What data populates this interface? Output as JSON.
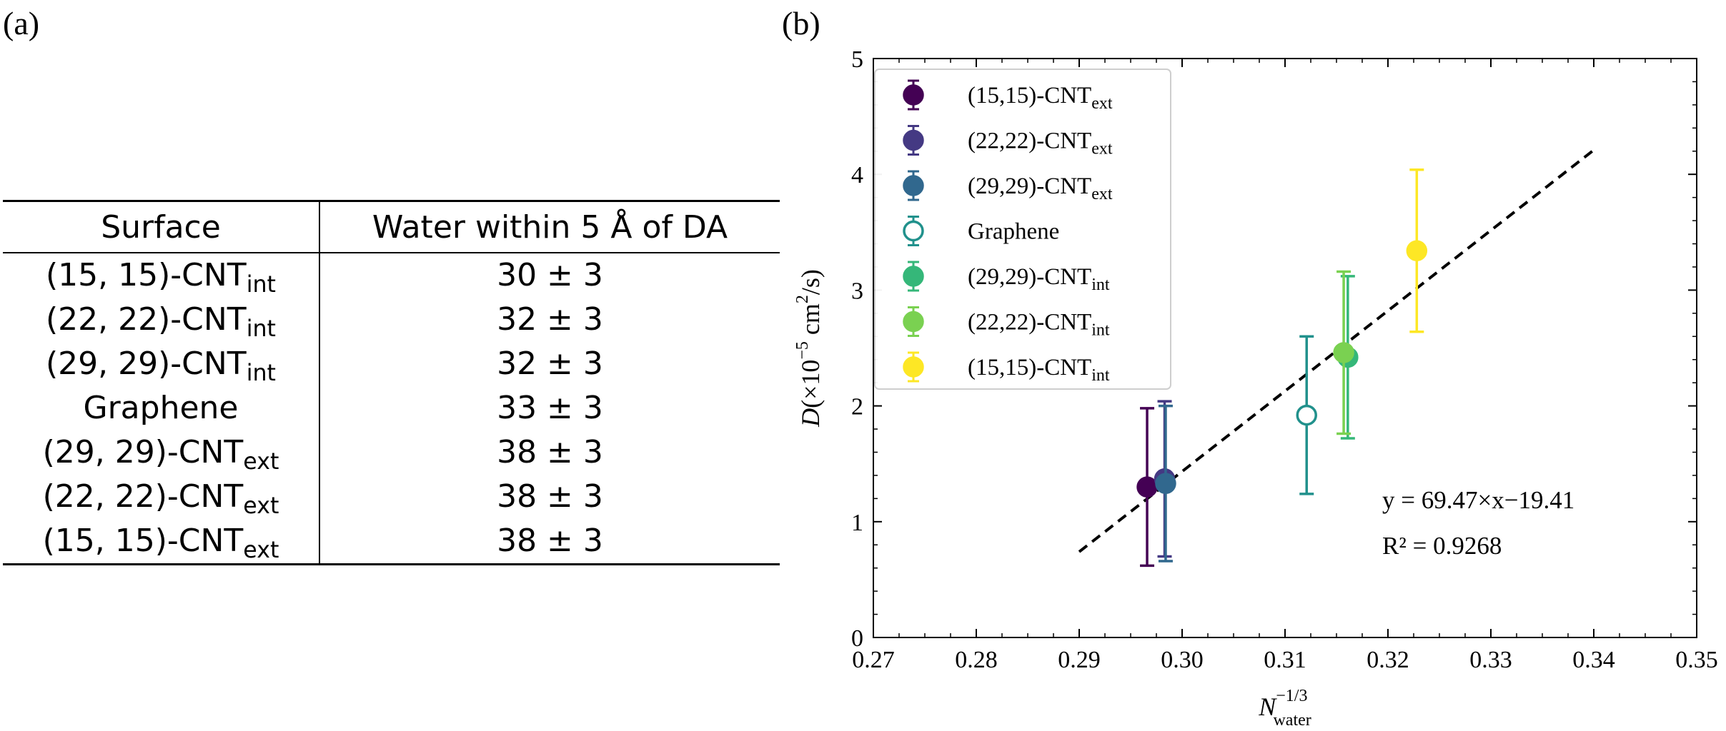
{
  "panels": {
    "a": "(a)",
    "b": "(b)"
  },
  "table": {
    "headers": [
      "Surface",
      "Water within 5 Å of DA"
    ],
    "rows": [
      {
        "surface": "(15, 15)-CNT",
        "sub": "int",
        "value": "30 ± 3"
      },
      {
        "surface": "(22, 22)-CNT",
        "sub": "int",
        "value": "32 ± 3"
      },
      {
        "surface": "(29, 29)-CNT",
        "sub": "int",
        "value": "32 ± 3"
      },
      {
        "surface": "Graphene",
        "sub": "",
        "value": "33 ± 3"
      },
      {
        "surface": "(29, 29)-CNT",
        "sub": "ext",
        "value": "38 ± 3"
      },
      {
        "surface": "(22, 22)-CNT",
        "sub": "ext",
        "value": "38 ± 3"
      },
      {
        "surface": "(15, 15)-CNT",
        "sub": "ext",
        "value": "38 ± 3"
      }
    ]
  },
  "chart_data": {
    "type": "scatter",
    "xlabel": "N_water^(-1/3)",
    "ylabel": "D(×10^-5 cm^2/s)",
    "xlim": [
      0.27,
      0.35
    ],
    "ylim": [
      0,
      5
    ],
    "xticks": [
      "0.27",
      "0.28",
      "0.29",
      "0.30",
      "0.31",
      "0.32",
      "0.33",
      "0.34",
      "0.35"
    ],
    "yticks": [
      "0",
      "1",
      "2",
      "3",
      "4",
      "5"
    ],
    "legend_position": "top-left",
    "series": [
      {
        "name": "(15,15)-CNT",
        "sub": "ext",
        "color": "#440154",
        "hollow": false,
        "x": 0.2966,
        "y": 1.3,
        "err": 0.68
      },
      {
        "name": "(22,22)-CNT",
        "sub": "ext",
        "color": "#443983",
        "hollow": false,
        "x": 0.2983,
        "y": 1.37,
        "err": 0.67
      },
      {
        "name": "(29,29)-CNT",
        "sub": "ext",
        "color": "#31688e",
        "hollow": false,
        "x": 0.2984,
        "y": 1.33,
        "err": 0.67
      },
      {
        "name": "Graphene",
        "sub": "",
        "color": "#21918c",
        "hollow": true,
        "x": 0.3121,
        "y": 1.92,
        "err": 0.68
      },
      {
        "name": "(29,29)-CNT",
        "sub": "int",
        "color": "#35b779",
        "hollow": false,
        "x": 0.3161,
        "y": 2.42,
        "err": 0.7
      },
      {
        "name": "(22,22)-CNT",
        "sub": "int",
        "color": "#7ad151",
        "hollow": false,
        "x": 0.3157,
        "y": 2.46,
        "err": 0.7
      },
      {
        "name": "(15,15)-CNT",
        "sub": "int",
        "color": "#fde725",
        "hollow": false,
        "x": 0.3228,
        "y": 3.34,
        "err": 0.7
      }
    ],
    "fit": {
      "x": [
        0.29,
        0.34
      ],
      "y": [
        0.74,
        4.21
      ]
    },
    "annotations": [
      "y = 69.47×x−19.41",
      "R² = 0.9268"
    ]
  }
}
